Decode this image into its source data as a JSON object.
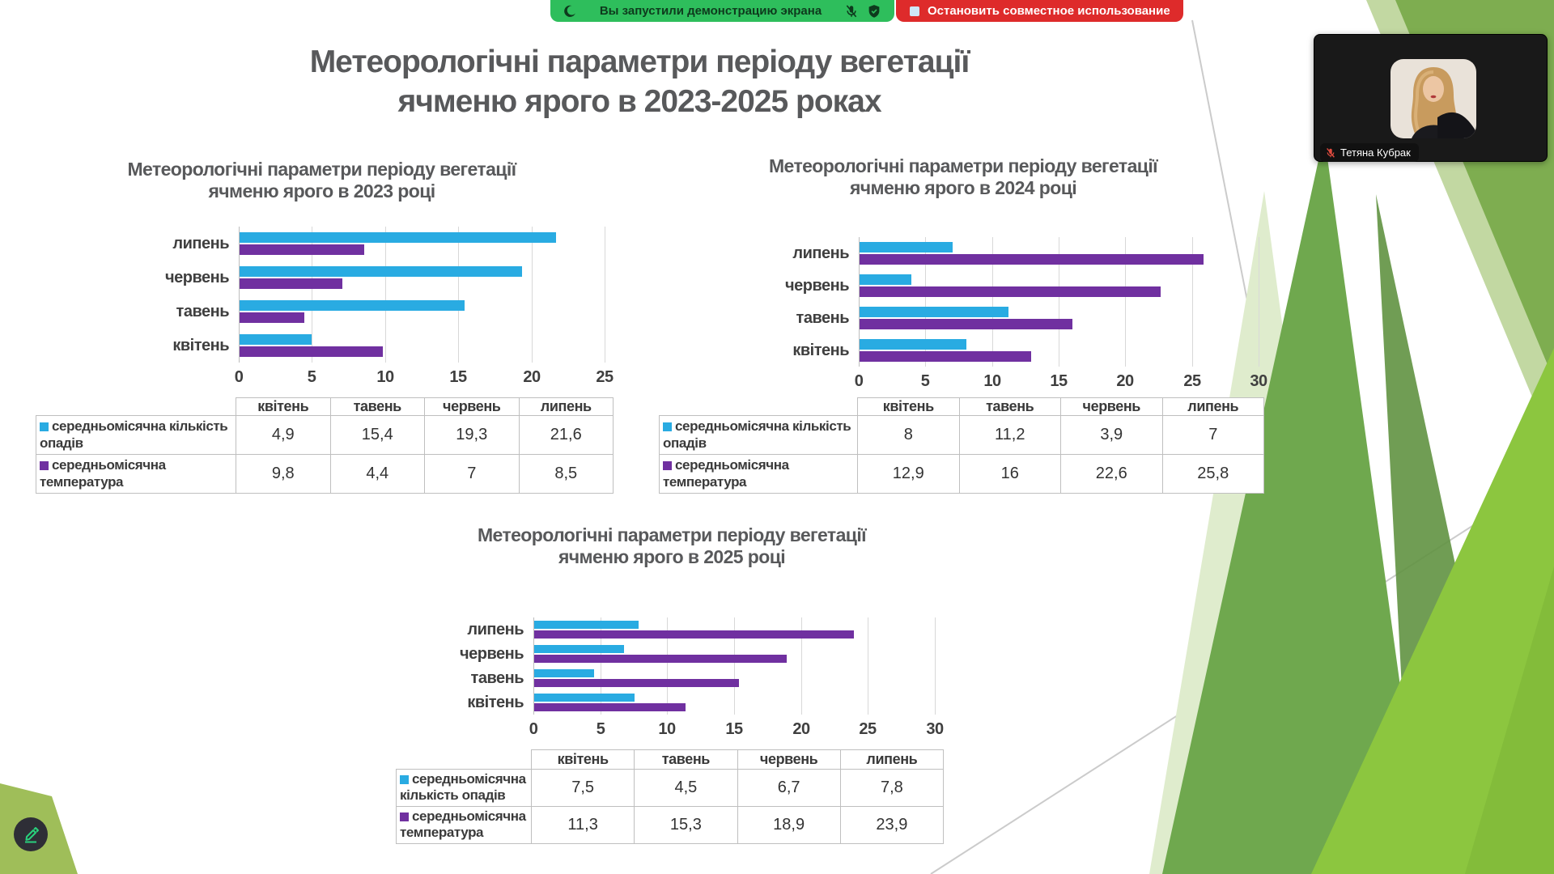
{
  "share_bar": {
    "message": "Вы запустили демонстрацию экрана",
    "stop_label": "Остановить совместное использование",
    "green_color": "#2EBE5C",
    "red_color": "#DE2B2B"
  },
  "participant": {
    "name": "Тетяна Кубрак"
  },
  "slide": {
    "title_line1": "Метеорологічні параметри періоду вегетації",
    "title_line2": "ячменю ярого в 2023-2025 роках"
  },
  "colors": {
    "precipitation_bar": "#29ABE2",
    "temperature_bar": "#7030A0",
    "title_gray": "#58595B"
  },
  "chart_data": [
    {
      "id": "2023",
      "type": "bar",
      "orientation": "horizontal",
      "title_line1": "Метеорологічні параметри періоду вегетації",
      "title_line2": "ячменю ярого в 2023 році",
      "categories": [
        "квітень",
        "тавень",
        "червень",
        "липень"
      ],
      "series": [
        {
          "name": "середньомісячна кількість опадів",
          "color": "#29ABE2",
          "values": [
            4.9,
            15.4,
            19.3,
            21.6
          ]
        },
        {
          "name": "середньомісячна температура",
          "color": "#7030A0",
          "values": [
            9.8,
            4.4,
            7,
            8.5
          ]
        }
      ],
      "xlim": [
        0,
        25
      ],
      "xstep": 5,
      "grid": true,
      "legend_position": "table-left"
    },
    {
      "id": "2024",
      "type": "bar",
      "orientation": "horizontal",
      "title_line1": "Метеорологічні параметри періоду вегетації",
      "title_line2": "ячменю ярого в 2024 році",
      "categories": [
        "квітень",
        "тавень",
        "червень",
        "липень"
      ],
      "series": [
        {
          "name": "середньомісячна кількість опадів",
          "color": "#29ABE2",
          "values": [
            8,
            11.2,
            3.9,
            7
          ]
        },
        {
          "name": "середньомісячна температура",
          "color": "#7030A0",
          "values": [
            12.9,
            16,
            22.6,
            25.8
          ]
        }
      ],
      "xlim": [
        0,
        30
      ],
      "xstep": 5,
      "grid": true,
      "legend_position": "table-left"
    },
    {
      "id": "2025",
      "type": "bar",
      "orientation": "horizontal",
      "title_line1": "Метеорологічні параметри періоду вегетації",
      "title_line2": "ячменю ярого в 2025 році",
      "categories": [
        "квітень",
        "тавень",
        "червень",
        "липень"
      ],
      "series": [
        {
          "name": "середньомісячна кількість опадів",
          "color": "#29ABE2",
          "values": [
            7.5,
            4.5,
            6.7,
            7.8
          ]
        },
        {
          "name": "середньомісячна температура",
          "color": "#7030A0",
          "values": [
            11.3,
            15.3,
            18.9,
            23.9
          ]
        }
      ],
      "xlim": [
        0,
        30
      ],
      "xstep": 5,
      "grid": true,
      "legend_position": "table-left"
    }
  ]
}
